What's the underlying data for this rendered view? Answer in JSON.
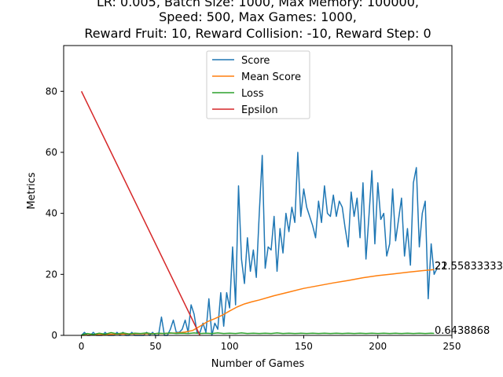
{
  "chart_data": {
    "type": "line",
    "title_lines": [
      "LR: 0.005, Batch Size: 1000, Max Memory: 100000,",
      "Speed: 500, Max Games: 1000,",
      "Reward Fruit: 10, Reward Collision: -10, Reward Step: 0"
    ],
    "xlabel": "Number of Games",
    "ylabel": "Metrics",
    "xlim": [
      -12,
      250
    ],
    "ylim": [
      0,
      95
    ],
    "xticks": [
      0,
      50,
      100,
      150,
      200,
      250
    ],
    "yticks": [
      0,
      20,
      40,
      60,
      80
    ],
    "legend_position": "top-center",
    "grid": false,
    "end_labels": [
      "22",
      "21.55833333",
      "0.6438868"
    ],
    "series": [
      {
        "name": "Score",
        "color": "#1f77b4",
        "points": [
          [
            0,
            0
          ],
          [
            2,
            1
          ],
          [
            4,
            0
          ],
          [
            6,
            0
          ],
          [
            8,
            1
          ],
          [
            10,
            0
          ],
          [
            12,
            0
          ],
          [
            14,
            0
          ],
          [
            16,
            1
          ],
          [
            18,
            0
          ],
          [
            20,
            0
          ],
          [
            22,
            0
          ],
          [
            24,
            1
          ],
          [
            26,
            0
          ],
          [
            28,
            1
          ],
          [
            30,
            0
          ],
          [
            32,
            0
          ],
          [
            34,
            1
          ],
          [
            36,
            0
          ],
          [
            38,
            0
          ],
          [
            40,
            0
          ],
          [
            42,
            0
          ],
          [
            44,
            1
          ],
          [
            46,
            0
          ],
          [
            48,
            1
          ],
          [
            50,
            0
          ],
          [
            52,
            0
          ],
          [
            54,
            6
          ],
          [
            56,
            0
          ],
          [
            58,
            0
          ],
          [
            60,
            2
          ],
          [
            62,
            5
          ],
          [
            64,
            1
          ],
          [
            66,
            1
          ],
          [
            68,
            2
          ],
          [
            70,
            5
          ],
          [
            72,
            1
          ],
          [
            74,
            10
          ],
          [
            76,
            7
          ],
          [
            78,
            1
          ],
          [
            80,
            1
          ],
          [
            82,
            4
          ],
          [
            84,
            1
          ],
          [
            86,
            12
          ],
          [
            88,
            0
          ],
          [
            90,
            4
          ],
          [
            92,
            2
          ],
          [
            94,
            14
          ],
          [
            96,
            3
          ],
          [
            98,
            14
          ],
          [
            100,
            9
          ],
          [
            102,
            29
          ],
          [
            104,
            10
          ],
          [
            106,
            49
          ],
          [
            108,
            25
          ],
          [
            110,
            17
          ],
          [
            112,
            32
          ],
          [
            114,
            21
          ],
          [
            116,
            28
          ],
          [
            118,
            19
          ],
          [
            120,
            40
          ],
          [
            122,
            59
          ],
          [
            124,
            22
          ],
          [
            126,
            29
          ],
          [
            128,
            28
          ],
          [
            130,
            39
          ],
          [
            132,
            21
          ],
          [
            134,
            35
          ],
          [
            136,
            27
          ],
          [
            138,
            40
          ],
          [
            140,
            34
          ],
          [
            142,
            42
          ],
          [
            144,
            37
          ],
          [
            146,
            60
          ],
          [
            148,
            39
          ],
          [
            150,
            48
          ],
          [
            152,
            42
          ],
          [
            154,
            39
          ],
          [
            156,
            36
          ],
          [
            158,
            32
          ],
          [
            160,
            44
          ],
          [
            162,
            37
          ],
          [
            164,
            49
          ],
          [
            166,
            40
          ],
          [
            168,
            39
          ],
          [
            170,
            46
          ],
          [
            172,
            39
          ],
          [
            174,
            44
          ],
          [
            176,
            42
          ],
          [
            178,
            35
          ],
          [
            180,
            29
          ],
          [
            182,
            47
          ],
          [
            184,
            39
          ],
          [
            186,
            45
          ],
          [
            188,
            32
          ],
          [
            190,
            50
          ],
          [
            192,
            25
          ],
          [
            194,
            39
          ],
          [
            196,
            54
          ],
          [
            198,
            30
          ],
          [
            200,
            50
          ],
          [
            202,
            38
          ],
          [
            204,
            40
          ],
          [
            206,
            26
          ],
          [
            208,
            30
          ],
          [
            210,
            48
          ],
          [
            212,
            31
          ],
          [
            214,
            38
          ],
          [
            216,
            45
          ],
          [
            218,
            26
          ],
          [
            220,
            35
          ],
          [
            222,
            23
          ],
          [
            224,
            50
          ],
          [
            226,
            55
          ],
          [
            228,
            29
          ],
          [
            230,
            40
          ],
          [
            232,
            44
          ],
          [
            234,
            12
          ],
          [
            236,
            30
          ],
          [
            238,
            20
          ],
          [
            240,
            22
          ]
        ]
      },
      {
        "name": "Mean Score",
        "color": "#ff7f0e",
        "points": [
          [
            0,
            0
          ],
          [
            20,
            0.4
          ],
          [
            40,
            0.5
          ],
          [
            55,
            0.6
          ],
          [
            65,
            0.8
          ],
          [
            70,
            1.1
          ],
          [
            75,
            1.6
          ],
          [
            80,
            3
          ],
          [
            85,
            4.5
          ],
          [
            90,
            5.5
          ],
          [
            95,
            6.6
          ],
          [
            100,
            8
          ],
          [
            105,
            9.3
          ],
          [
            110,
            10.3
          ],
          [
            115,
            11
          ],
          [
            120,
            11.6
          ],
          [
            130,
            13
          ],
          [
            140,
            14.2
          ],
          [
            150,
            15.4
          ],
          [
            160,
            16.3
          ],
          [
            170,
            17.2
          ],
          [
            180,
            18
          ],
          [
            190,
            18.9
          ],
          [
            200,
            19.6
          ],
          [
            210,
            20.1
          ],
          [
            220,
            20.7
          ],
          [
            230,
            21.2
          ],
          [
            238,
            21.56
          ]
        ]
      },
      {
        "name": "Loss",
        "color": "#2ca02c",
        "points": [
          [
            0,
            0.2
          ],
          [
            4,
            0.6
          ],
          [
            8,
            0.3
          ],
          [
            12,
            0.7
          ],
          [
            16,
            0.4
          ],
          [
            20,
            0.9
          ],
          [
            24,
            0.5
          ],
          [
            28,
            0.8
          ],
          [
            32,
            0.5
          ],
          [
            36,
            0.7
          ],
          [
            40,
            0.6
          ],
          [
            44,
            0.8
          ],
          [
            48,
            0.5
          ],
          [
            52,
            0.7
          ],
          [
            56,
            0.6
          ],
          [
            60,
            0.8
          ],
          [
            64,
            0.6
          ],
          [
            68,
            0.7
          ],
          [
            72,
            0.6
          ],
          [
            76,
            0.8
          ],
          [
            80,
            0.6
          ],
          [
            84,
            0.7
          ],
          [
            88,
            0.6
          ],
          [
            92,
            0.8
          ],
          [
            96,
            0.6
          ],
          [
            100,
            0.7
          ],
          [
            104,
            0.6
          ],
          [
            108,
            0.8
          ],
          [
            112,
            0.6
          ],
          [
            116,
            0.7
          ],
          [
            120,
            0.6
          ],
          [
            124,
            0.7
          ],
          [
            128,
            0.6
          ],
          [
            132,
            0.8
          ],
          [
            136,
            0.6
          ],
          [
            140,
            0.7
          ],
          [
            144,
            0.6
          ],
          [
            148,
            0.7
          ],
          [
            152,
            0.6
          ],
          [
            156,
            0.7
          ],
          [
            160,
            0.6
          ],
          [
            164,
            0.7
          ],
          [
            168,
            0.6
          ],
          [
            172,
            0.7
          ],
          [
            176,
            0.6
          ],
          [
            180,
            0.7
          ],
          [
            184,
            0.6
          ],
          [
            188,
            0.7
          ],
          [
            192,
            0.6
          ],
          [
            196,
            0.7
          ],
          [
            200,
            0.6
          ],
          [
            204,
            0.7
          ],
          [
            208,
            0.6
          ],
          [
            212,
            0.7
          ],
          [
            216,
            0.6
          ],
          [
            220,
            0.7
          ],
          [
            224,
            0.6
          ],
          [
            228,
            0.7
          ],
          [
            232,
            0.6
          ],
          [
            236,
            0.7
          ],
          [
            238,
            0.64
          ]
        ]
      },
      {
        "name": "Epsilon",
        "color": "#d62728",
        "points": [
          [
            0,
            80
          ],
          [
            80,
            0
          ]
        ]
      }
    ]
  }
}
